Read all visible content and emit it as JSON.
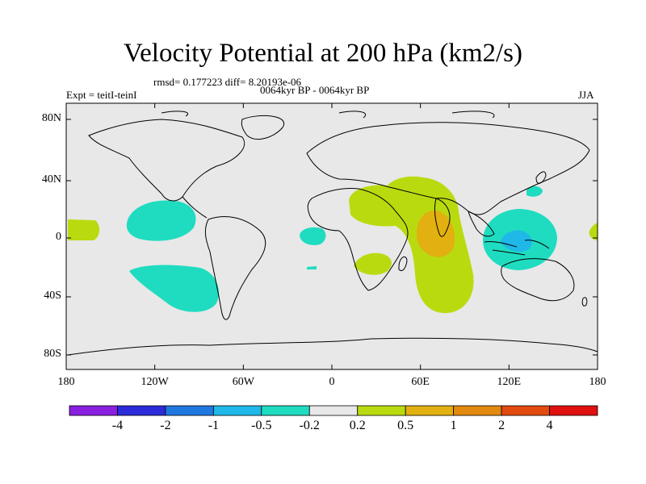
{
  "title": "Velocity Potential at 200 hPa (km2/s)",
  "stats": "rmsd= 0.177223  diff= 8.20193e-06",
  "experiment": "Expt = teitI-teinI",
  "period": "0064kyr BP - 0064kyr BP",
  "season": "JJA",
  "lat_ticks": [
    "80N",
    "40N",
    "0",
    "40S",
    "80S"
  ],
  "lon_ticks": [
    "180",
    "120W",
    "60W",
    "0",
    "60E",
    "120E",
    "180"
  ],
  "colorbar": {
    "labels": [
      "-4",
      "-2",
      "-1",
      "-0.5",
      "-0.2",
      "0.2",
      "0.5",
      "1",
      "2",
      "4"
    ],
    "colors": [
      "#8a1fe0",
      "#2b2bd9",
      "#1f78e0",
      "#1fb8e8",
      "#1fdcc0",
      "#e8e8e8",
      "#bada10",
      "#e2b010",
      "#e28a10",
      "#e24a10",
      "#e01010"
    ]
  },
  "map_colors": {
    "background": "#e8e8e8",
    "neg_weak": "#1fdcc0",
    "pos_weak": "#bada10",
    "pos_mid": "#e2b010",
    "neg_mid": "#1fb8e8"
  }
}
